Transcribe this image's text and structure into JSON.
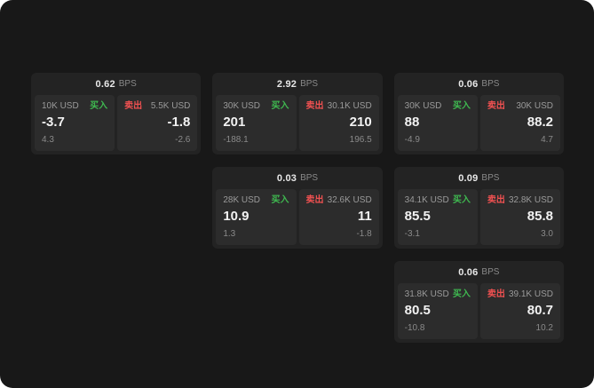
{
  "labels": {
    "unit": "BPS",
    "buy": "买入",
    "sell": "卖出"
  },
  "colors": {
    "buy_green": "#3fb950",
    "sell_red": "#f05151",
    "card_bg": "#232323",
    "panel_bg": "#2c2c2c",
    "page_bg": "#181818"
  },
  "cards": [
    {
      "bps": "0.62",
      "buy": {
        "amount": "10K USD",
        "price": "-3.7",
        "delta": "4.3"
      },
      "sell": {
        "amount": "5.5K USD",
        "price": "-1.8",
        "delta": "-2.6"
      }
    },
    {
      "bps": "2.92",
      "buy": {
        "amount": "30K USD",
        "price": "201",
        "delta": "-188.1"
      },
      "sell": {
        "amount": "30.1K USD",
        "price": "210",
        "delta": "196.5"
      }
    },
    {
      "bps": "0.06",
      "buy": {
        "amount": "30K USD",
        "price": "88",
        "delta": "-4.9"
      },
      "sell": {
        "amount": "30K USD",
        "price": "88.2",
        "delta": "4.7"
      }
    },
    {
      "bps": "0.03",
      "buy": {
        "amount": "28K USD",
        "price": "10.9",
        "delta": "1.3"
      },
      "sell": {
        "amount": "32.6K USD",
        "price": "11",
        "delta": "-1.8"
      }
    },
    {
      "bps": "0.09",
      "buy": {
        "amount": "34.1K USD",
        "price": "85.5",
        "delta": "-3.1"
      },
      "sell": {
        "amount": "32.8K USD",
        "price": "85.8",
        "delta": "3.0"
      }
    },
    {
      "bps": "0.06",
      "buy": {
        "amount": "31.8K USD",
        "price": "80.5",
        "delta": "-10.8"
      },
      "sell": {
        "amount": "39.1K USD",
        "price": "80.7",
        "delta": "10.2"
      }
    }
  ]
}
